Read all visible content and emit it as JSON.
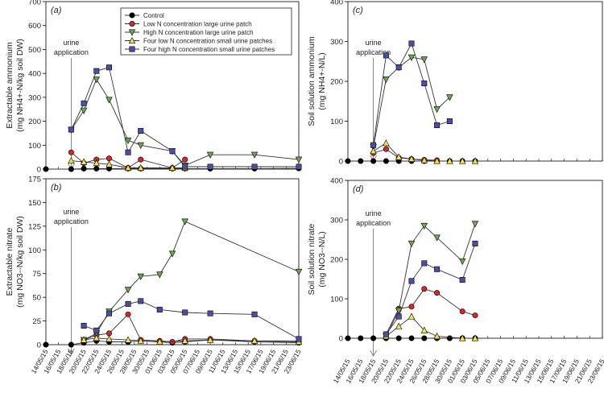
{
  "legend": [
    {
      "label": "Control",
      "color": "#000000",
      "marker": "circle"
    },
    {
      "label": "Low N concentration large urine patch",
      "color": "#d9262c",
      "marker": "circle"
    },
    {
      "label": "High N concentration large urine patch",
      "color": "#6aa84f",
      "marker": "triangle-down"
    },
    {
      "label": "Four low N concentration small urine patches",
      "color": "#f1e14a",
      "marker": "triangle-up"
    },
    {
      "label": "Four high N concentration small urine patches",
      "color": "#4b4fa6",
      "marker": "square"
    }
  ],
  "dates": [
    "14/05/15",
    "16/05/15",
    "18/05/15",
    "20/05/15",
    "22/05/15",
    "24/05/15",
    "26/05/15",
    "28/05/15",
    "30/05/15",
    "01/06/15",
    "03/06/15",
    "05/06/15",
    "07/06/15",
    "09/06/15",
    "11/06/15",
    "13/06/15",
    "15/06/15",
    "17/06/15",
    "19/06/15",
    "21/06/15",
    "23/06/15"
  ],
  "chart_data": [
    {
      "panel": "(a)",
      "type": "line",
      "ylabel_line1": "Extractable ammonium",
      "ylabel_line2": "(mg NH4+-N/kg soil DW)",
      "ylim": [
        0,
        700
      ],
      "yticks": [
        0,
        100,
        200,
        300,
        400,
        500,
        600,
        700
      ],
      "annotation": [
        "urine",
        "application"
      ],
      "arrow_x": "18/05/15",
      "series": [
        {
          "name": "Control",
          "points": [
            [
              "14/05/15",
              0
            ],
            [
              "18/05/15",
              0
            ],
            [
              "20/05/15",
              2
            ],
            [
              "22/05/15",
              2
            ],
            [
              "24/05/15",
              2
            ],
            [
              "27/05/15",
              2
            ],
            [
              "29/05/15",
              2
            ],
            [
              "03/06/15",
              2
            ],
            [
              "05/06/15",
              2
            ],
            [
              "09/06/15",
              2
            ],
            [
              "16/06/15",
              2
            ],
            [
              "23/06/15",
              3
            ]
          ]
        },
        {
          "name": "Low N concentration large urine patch",
          "points": [
            [
              "18/05/15",
              70
            ],
            [
              "20/05/15",
              25
            ],
            [
              "22/05/15",
              40
            ],
            [
              "24/05/15",
              45
            ],
            [
              "27/05/15",
              5
            ],
            [
              "29/05/15",
              40
            ],
            [
              "03/06/15",
              5
            ],
            [
              "05/06/15",
              40
            ]
          ]
        },
        {
          "name": "High N concentration large urine patch",
          "points": [
            [
              "18/05/15",
              165
            ],
            [
              "20/05/15",
              245
            ],
            [
              "22/05/15",
              375
            ],
            [
              "24/05/15",
              290
            ],
            [
              "27/05/15",
              120
            ],
            [
              "29/05/15",
              100
            ],
            [
              "03/06/15",
              75
            ],
            [
              "05/06/15",
              15
            ],
            [
              "09/06/15",
              60
            ],
            [
              "16/06/15",
              60
            ],
            [
              "23/06/15",
              40
            ]
          ]
        },
        {
          "name": "Four low N concentration small urine patches",
          "points": [
            [
              "18/05/15",
              35
            ],
            [
              "20/05/15",
              30
            ],
            [
              "22/05/15",
              25
            ],
            [
              "24/05/15",
              20
            ],
            [
              "27/05/15",
              5
            ],
            [
              "29/05/15",
              5
            ],
            [
              "03/06/15",
              5
            ],
            [
              "05/06/15",
              5
            ]
          ]
        },
        {
          "name": "Four high N concentration small urine patches",
          "points": [
            [
              "18/05/15",
              165
            ],
            [
              "20/05/15",
              275
            ],
            [
              "22/05/15",
              410
            ],
            [
              "24/05/15",
              425
            ],
            [
              "27/05/15",
              70
            ],
            [
              "29/05/15",
              160
            ],
            [
              "03/06/15",
              75
            ],
            [
              "05/06/15",
              10
            ],
            [
              "09/06/15",
              10
            ],
            [
              "16/06/15",
              10
            ],
            [
              "23/06/15",
              10
            ]
          ]
        }
      ]
    },
    {
      "panel": "(b)",
      "type": "line",
      "ylabel_line1": "Extractable nitrate",
      "ylabel_line2": "(mg NO3--N/kg soil DW)",
      "ylim": [
        0,
        175
      ],
      "yticks": [
        0,
        25,
        50,
        75,
        100,
        125,
        150,
        175
      ],
      "annotation": [
        "urine",
        "application"
      ],
      "arrow_x": "18/05/15",
      "series": [
        {
          "name": "Control",
          "points": [
            [
              "14/05/15",
              0
            ],
            [
              "18/05/15",
              0
            ],
            [
              "20/05/15",
              2
            ],
            [
              "22/05/15",
              4
            ],
            [
              "24/05/15",
              3
            ],
            [
              "27/05/15",
              3
            ],
            [
              "29/05/15",
              4
            ],
            [
              "01/06/15",
              3
            ],
            [
              "03/06/15",
              2
            ],
            [
              "05/06/15",
              3
            ],
            [
              "09/06/15",
              5
            ],
            [
              "16/06/15",
              3
            ],
            [
              "23/06/15",
              2
            ]
          ]
        },
        {
          "name": "Low N concentration large urine patch",
          "points": [
            [
              "20/05/15",
              5
            ],
            [
              "22/05/15",
              10
            ],
            [
              "24/05/15",
              12
            ],
            [
              "27/05/15",
              32
            ],
            [
              "29/05/15",
              5
            ],
            [
              "01/06/15",
              4
            ],
            [
              "03/06/15",
              3
            ],
            [
              "05/06/15",
              6
            ],
            [
              "09/06/15",
              6
            ],
            [
              "16/06/15",
              4
            ],
            [
              "23/06/15",
              4
            ]
          ]
        },
        {
          "name": "High N concentration large urine patch",
          "points": [
            [
              "20/05/15",
              5
            ],
            [
              "22/05/15",
              12
            ],
            [
              "24/05/15",
              35
            ],
            [
              "27/05/15",
              58
            ],
            [
              "29/05/15",
              72
            ],
            [
              "01/06/15",
              74
            ],
            [
              "03/06/15",
              96
            ],
            [
              "05/06/15",
              130
            ],
            [
              "23/06/15",
              77
            ]
          ]
        },
        {
          "name": "Four low N concentration small urine patches",
          "points": [
            [
              "20/05/15",
              5
            ],
            [
              "22/05/15",
              7
            ],
            [
              "24/05/15",
              6
            ],
            [
              "27/05/15",
              5
            ],
            [
              "29/05/15",
              4
            ],
            [
              "01/06/15",
              3
            ],
            [
              "05/06/15",
              4
            ],
            [
              "09/06/15",
              5
            ],
            [
              "16/06/15",
              4
            ],
            [
              "23/06/15",
              3
            ]
          ]
        },
        {
          "name": "Four high N concentration small urine patches",
          "points": [
            [
              "20/05/15",
              20
            ],
            [
              "22/05/15",
              15
            ],
            [
              "24/05/15",
              33
            ],
            [
              "27/05/15",
              43
            ],
            [
              "29/05/15",
              46
            ],
            [
              "01/06/15",
              37
            ],
            [
              "05/06/15",
              34
            ],
            [
              "09/06/15",
              33
            ],
            [
              "16/06/15",
              32
            ],
            [
              "23/06/15",
              6
            ]
          ]
        }
      ]
    },
    {
      "panel": "(c)",
      "type": "line",
      "ylabel_line1": "Soil solution ammonium",
      "ylabel_line2": "(mg NH4+-N/L)",
      "ylim": [
        0,
        400
      ],
      "yticks": [
        0,
        100,
        200,
        300,
        400
      ],
      "annotation": [
        "urine",
        "application"
      ],
      "arrow_x": "18/05/15",
      "series": [
        {
          "name": "Control",
          "points": [
            [
              "14/05/15",
              0
            ],
            [
              "16/05/15",
              0
            ],
            [
              "18/05/15",
              0
            ],
            [
              "20/05/15",
              0
            ],
            [
              "22/05/15",
              0
            ],
            [
              "24/05/15",
              0
            ],
            [
              "26/05/15",
              0
            ],
            [
              "28/05/15",
              0
            ],
            [
              "30/05/15",
              0
            ],
            [
              "01/06/15",
              0
            ],
            [
              "03/06/15",
              0
            ]
          ]
        },
        {
          "name": "Low N concentration large urine patch",
          "points": [
            [
              "18/05/15",
              20
            ],
            [
              "20/05/15",
              30
            ],
            [
              "22/05/15",
              8
            ],
            [
              "24/05/15",
              5
            ],
            [
              "26/05/15",
              3
            ],
            [
              "28/05/15",
              2
            ]
          ]
        },
        {
          "name": "High N concentration large urine patch",
          "points": [
            [
              "18/05/15",
              35
            ],
            [
              "20/05/15",
              205
            ],
            [
              "22/05/15",
              235
            ],
            [
              "24/05/15",
              260
            ],
            [
              "26/05/15",
              255
            ],
            [
              "28/05/15",
              130
            ],
            [
              "30/05/15",
              160
            ]
          ]
        },
        {
          "name": "Four low N concentration small urine patches",
          "points": [
            [
              "18/05/15",
              25
            ],
            [
              "20/05/15",
              45
            ],
            [
              "22/05/15",
              10
            ],
            [
              "24/05/15",
              5
            ],
            [
              "26/05/15",
              2
            ],
            [
              "28/05/15",
              0
            ],
            [
              "30/05/15",
              0
            ],
            [
              "01/06/15",
              0
            ],
            [
              "03/06/15",
              0
            ]
          ]
        },
        {
          "name": "Four high N concentration small urine patches",
          "points": [
            [
              "18/05/15",
              40
            ],
            [
              "20/05/15",
              265
            ],
            [
              "22/05/15",
              235
            ],
            [
              "24/05/15",
              295
            ],
            [
              "26/05/15",
              195
            ],
            [
              "28/05/15",
              90
            ],
            [
              "30/05/15",
              100
            ]
          ]
        }
      ]
    },
    {
      "panel": "(d)",
      "type": "line",
      "ylabel_line1": "Soil solution nitrate",
      "ylabel_line2": "(mg NO3--N/L)",
      "ylim": [
        0,
        400
      ],
      "yticks": [
        0,
        100,
        200,
        300,
        400
      ],
      "annotation": [
        "urine",
        "application"
      ],
      "arrow_x": "18/05/15",
      "series": [
        {
          "name": "Control",
          "points": [
            [
              "14/05/15",
              0
            ],
            [
              "16/05/15",
              0
            ],
            [
              "18/05/15",
              0
            ],
            [
              "20/05/15",
              0
            ],
            [
              "22/05/15",
              0
            ],
            [
              "24/05/15",
              0
            ],
            [
              "26/05/15",
              0
            ],
            [
              "28/05/15",
              0
            ],
            [
              "30/05/15",
              0
            ],
            [
              "01/06/15",
              0
            ],
            [
              "03/06/15",
              0
            ]
          ]
        },
        {
          "name": "Low N concentration large urine patch",
          "points": [
            [
              "20/05/15",
              10
            ],
            [
              "22/05/15",
              75
            ],
            [
              "24/05/15",
              80
            ],
            [
              "26/05/15",
              125
            ],
            [
              "28/05/15",
              115
            ],
            [
              "01/06/15",
              68
            ],
            [
              "03/06/15",
              58
            ]
          ]
        },
        {
          "name": "High N concentration large urine patch",
          "points": [
            [
              "20/05/15",
              5
            ],
            [
              "22/05/15",
              70
            ],
            [
              "24/05/15",
              240
            ],
            [
              "26/05/15",
              285
            ],
            [
              "28/05/15",
              255
            ],
            [
              "01/06/15",
              195
            ],
            [
              "03/06/15",
              290
            ]
          ]
        },
        {
          "name": "Four low N concentration small urine patches",
          "points": [
            [
              "20/05/15",
              5
            ],
            [
              "22/05/15",
              30
            ],
            [
              "24/05/15",
              55
            ],
            [
              "26/05/15",
              20
            ],
            [
              "28/05/15",
              5
            ],
            [
              "01/06/15",
              0
            ],
            [
              "03/06/15",
              0
            ]
          ]
        },
        {
          "name": "Four high N concentration small urine patches",
          "points": [
            [
              "20/05/15",
              10
            ],
            [
              "22/05/15",
              55
            ],
            [
              "24/05/15",
              145
            ],
            [
              "26/05/15",
              190
            ],
            [
              "28/05/15",
              175
            ],
            [
              "01/06/15",
              148
            ],
            [
              "03/06/15",
              240
            ]
          ]
        }
      ]
    }
  ]
}
